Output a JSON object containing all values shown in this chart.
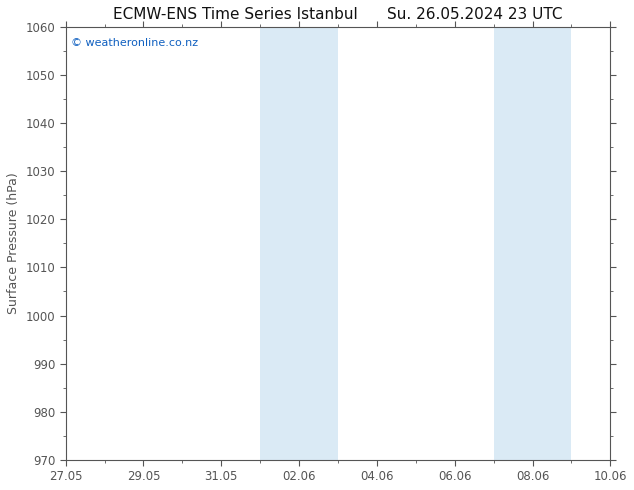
{
  "title_left": "ECMW-ENS Time Series Istanbul",
  "title_right": "Su. 26.05.2024 23 UTC",
  "ylabel": "Surface Pressure (hPa)",
  "ylim": [
    970,
    1060
  ],
  "yticks": [
    970,
    980,
    990,
    1000,
    1010,
    1020,
    1030,
    1040,
    1050,
    1060
  ],
  "xtick_labels": [
    "27.05",
    "29.05",
    "31.05",
    "02.06",
    "04.06",
    "06.06",
    "08.06",
    "10.06"
  ],
  "xtick_positions": [
    0,
    2,
    4,
    6,
    8,
    10,
    12,
    14
  ],
  "shaded_bands": [
    {
      "xmin": 5.0,
      "xmax": 7.0
    },
    {
      "xmin": 11.0,
      "xmax": 13.0
    }
  ],
  "shade_color": "#daeaf5",
  "background_color": "#ffffff",
  "plot_bg_color": "#ffffff",
  "watermark_text": "© weatheronline.co.nz",
  "watermark_color": "#1060c0",
  "title_fontsize": 11,
  "tick_fontsize": 8.5,
  "ylabel_fontsize": 9,
  "spine_color": "#555555",
  "tick_color": "#555555",
  "x_total_days": 14,
  "watermark_fontsize": 8
}
